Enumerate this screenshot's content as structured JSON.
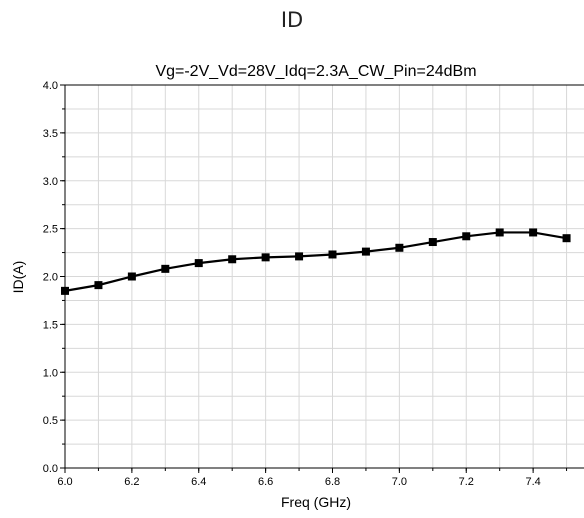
{
  "heading": "ID",
  "chart_data": {
    "type": "line",
    "title": "Vg=-2V_Vd=28V_Idq=2.3A_CW_Pin=24dBm",
    "xlabel": "Freq (GHz)",
    "ylabel": "ID(A)",
    "xlim": [
      6.0,
      7.6
    ],
    "ylim": [
      0.0,
      4.0
    ],
    "xticks": [
      "6.0",
      "6.2",
      "6.4",
      "6.6",
      "6.8",
      "7.0",
      "7.2",
      "7.4"
    ],
    "yticks": [
      "0.0",
      "0.5",
      "1.0",
      "1.5",
      "2.0",
      "2.5",
      "3.0",
      "3.5",
      "4.0"
    ],
    "grid": true,
    "series": [
      {
        "x": [
          6.0,
          6.1,
          6.2,
          6.3,
          6.4,
          6.5,
          6.6,
          6.7,
          6.8,
          6.9,
          7.0,
          7.1,
          7.2,
          7.3,
          7.4,
          7.5
        ],
        "y": [
          1.85,
          1.91,
          2.0,
          2.08,
          2.14,
          2.18,
          2.2,
          2.21,
          2.23,
          2.26,
          2.3,
          2.36,
          2.42,
          2.46,
          2.46,
          2.4
        ]
      }
    ],
    "line_color": "#000000",
    "grid_color": "#d8d8d8"
  }
}
